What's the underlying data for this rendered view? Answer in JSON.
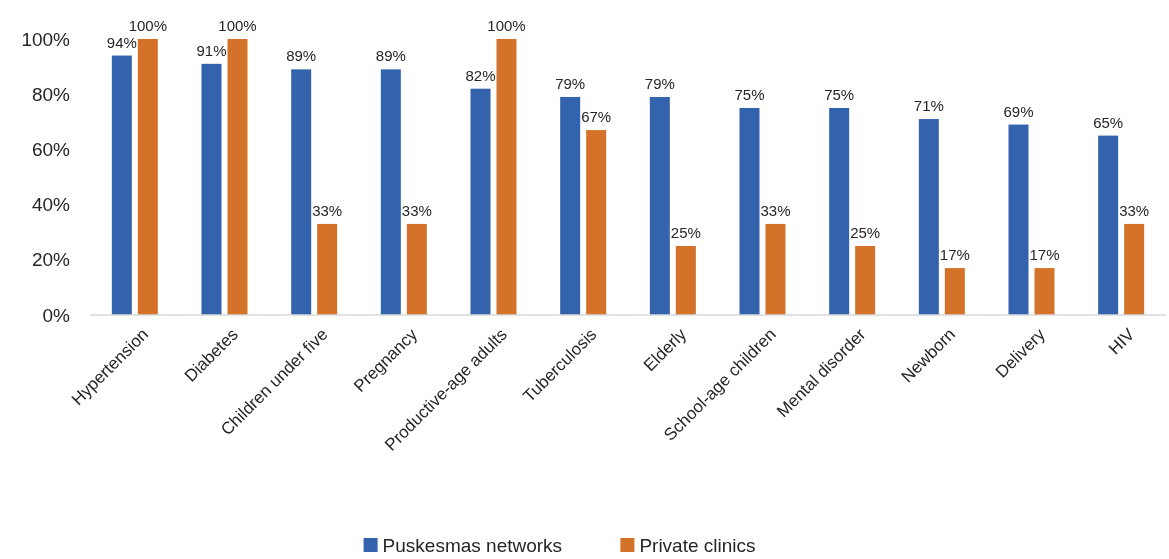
{
  "chart_data": {
    "type": "bar",
    "categories": [
      "Hypertension",
      "Diabetes",
      "Children under five",
      "Pregnancy",
      "Productive-age adults",
      "Tuberculosis",
      "Elderly",
      "School-age children",
      "Mental disorder",
      "Newborn",
      "Delivery",
      "HIV"
    ],
    "series": [
      {
        "name": "Puskesmas networks",
        "color": "#3463ae",
        "values": [
          94,
          91,
          89,
          89,
          82,
          79,
          79,
          75,
          75,
          71,
          69,
          65
        ],
        "value_labels": [
          "94%",
          "91%",
          "89%",
          "89%",
          "82%",
          "79%",
          "79%",
          "75%",
          "75%",
          "71%",
          "69%",
          "65%"
        ]
      },
      {
        "name": "Private clinics",
        "color": "#d57229",
        "values": [
          100,
          100,
          33,
          33,
          100,
          67,
          25,
          33,
          25,
          17,
          17,
          33
        ],
        "value_labels": [
          "100%",
          "100%",
          "33%",
          "33%",
          "100%",
          "67%",
          "25%",
          "33%",
          "25%",
          "17%",
          "17%",
          "33%"
        ]
      }
    ],
    "ylim": [
      0,
      100
    ],
    "yticks": [
      {
        "value": 0,
        "label": "0%"
      },
      {
        "value": 20,
        "label": "20%"
      },
      {
        "value": 40,
        "label": "40%"
      },
      {
        "value": 60,
        "label": "60%"
      },
      {
        "value": 80,
        "label": "80%"
      },
      {
        "value": 100,
        "label": "100%"
      }
    ],
    "legend": "bottom"
  }
}
